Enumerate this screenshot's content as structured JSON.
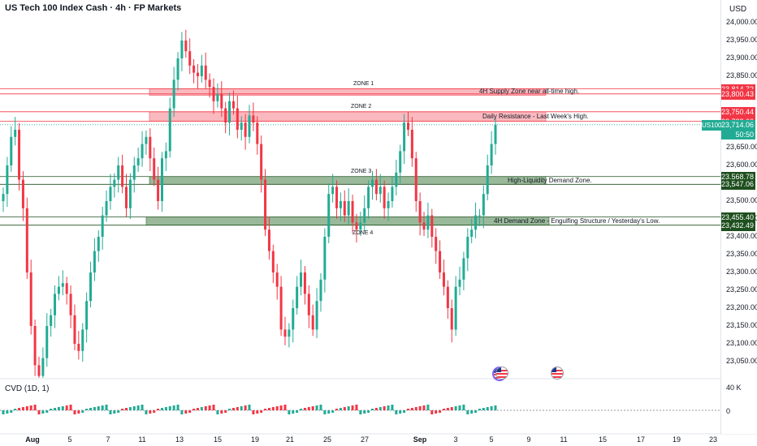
{
  "header": {
    "title": "US Tech 100 Index Cash · 4h · FP Markets",
    "currency": "USD"
  },
  "price_axis": {
    "ticks": [
      "24,000.00",
      "23,950.00",
      "23,900.00",
      "23,850.00",
      "23,650.00",
      "23,600.00",
      "23,500.00",
      "23,450.00",
      "23,400.00",
      "23,350.00",
      "23,300.00",
      "23,250.00",
      "23,200.00",
      "23,150.00",
      "23,100.00",
      "23,050.00"
    ],
    "badges": [
      {
        "label": "23,814.72",
        "color": "red"
      },
      {
        "label": "23,800.43",
        "color": "red"
      },
      {
        "label": "23,750.44",
        "color": "red"
      },
      {
        "label": "23,723.66",
        "color": "red"
      },
      {
        "label": "23,714.06",
        "color": "teal"
      },
      {
        "label": "23,568.78",
        "color": "green"
      },
      {
        "label": "23,547.06",
        "color": "green"
      },
      {
        "label": "23,455.40",
        "color": "green"
      },
      {
        "label": "23,432.49",
        "color": "green"
      }
    ],
    "symbol": "US100",
    "countdown": "50:50"
  },
  "zones": [
    {
      "name": "ZONE 1",
      "desc": "4H Supply Zone near all-time high.",
      "top": 23814.72,
      "bottom": 23800.43,
      "color": "red"
    },
    {
      "name": "ZONE 2",
      "desc": "Daily Resistance - Last Week's High.",
      "top": 23750.44,
      "bottom": 23723.66,
      "color": "red"
    },
    {
      "name": "ZONE 3",
      "desc": "High-Liquidity Demand Zone.",
      "top": 23568.78,
      "bottom": 23547.06,
      "color": "green"
    },
    {
      "name": "ZONE 4",
      "desc": "4H Demand Zone - Engulfing Structure / Yesterday's Low.",
      "top": 23455.4,
      "bottom": 23432.49,
      "color": "green"
    }
  ],
  "cvd": {
    "label": "CVD (1D, 1)",
    "ticks": [
      "40 K",
      "0"
    ]
  },
  "x_axis": {
    "labels": [
      "Aug",
      "5",
      "7",
      "11",
      "13",
      "15",
      "19",
      "21",
      "25",
      "27",
      "Sep",
      "3",
      "5",
      "9",
      "11",
      "15",
      "17",
      "19",
      "23"
    ],
    "bold": [
      "Aug",
      "Sep"
    ]
  },
  "chart_data": {
    "type": "candlestick",
    "symbol": "US100",
    "timeframe": "4h",
    "last_price": 23714.06,
    "ylim": [
      23010,
      24030
    ],
    "closes": [
      23520,
      23600,
      23680,
      23700,
      23560,
      23480,
      23300,
      23150,
      23040,
      23010,
      23060,
      23150,
      23180,
      23240,
      23260,
      23270,
      23240,
      23180,
      23100,
      23080,
      23140,
      23220,
      23300,
      23360,
      23400,
      23460,
      23500,
      23540,
      23560,
      23600,
      23540,
      23480,
      23560,
      23600,
      23620,
      23660,
      23680,
      23620,
      23560,
      23500,
      23620,
      23640,
      23760,
      23840,
      23900,
      23950,
      23920,
      23880,
      23860,
      23850,
      23880,
      23840,
      23820,
      23780,
      23800,
      23760,
      23720,
      23780,
      23760,
      23700,
      23720,
      23680,
      23740,
      23720,
      23660,
      23560,
      23420,
      23360,
      23300,
      23260,
      23140,
      23120,
      23140,
      23200,
      23260,
      23300,
      23240,
      23180,
      23140,
      23220,
      23280,
      23400,
      23520,
      23540,
      23480,
      23500,
      23460,
      23500,
      23440,
      23420,
      23440,
      23480,
      23540,
      23560,
      23520,
      23540,
      23480,
      23500,
      23540,
      23580,
      23640,
      23720,
      23700,
      23620,
      23500,
      23440,
      23420,
      23460,
      23400,
      23360,
      23300,
      23260,
      23200,
      23140,
      23260,
      23280,
      23340,
      23400,
      23420,
      23460,
      23460,
      23520,
      23600,
      23660,
      23714
    ]
  }
}
